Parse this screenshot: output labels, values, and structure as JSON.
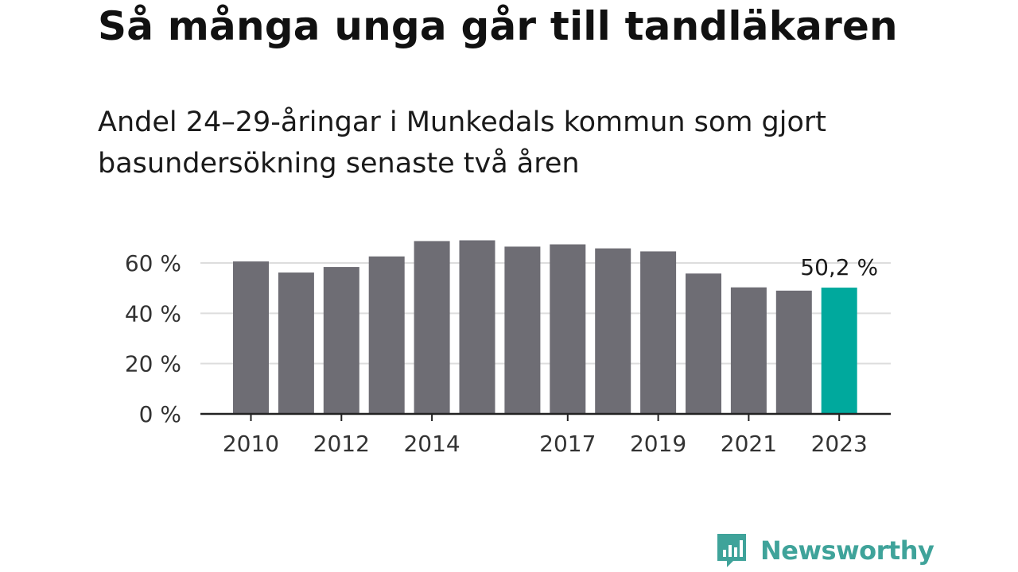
{
  "title": "Så många unga går till tandläkaren",
  "subtitle": "Andel 24–29-åringar i Munkedals kommun som gjort basundersökning senaste två åren",
  "brand": {
    "name": "Newsworthy",
    "color": "#3fa39a"
  },
  "colors": {
    "bar": "#6e6d74",
    "highlight": "#00a99d",
    "grid": "#dddddd",
    "axis": "#222222"
  },
  "chart_data": {
    "type": "bar",
    "categories": [
      "2010",
      "2011",
      "2012",
      "2013",
      "2014",
      "2015",
      "2016",
      "2017",
      "2018",
      "2019",
      "2020",
      "2021",
      "2022",
      "2023"
    ],
    "values": [
      60.6,
      56.2,
      58.4,
      62.6,
      68.7,
      69.0,
      66.5,
      67.4,
      65.8,
      64.6,
      55.8,
      50.3,
      49.0,
      50.2
    ],
    "highlight_index": 13,
    "value_label": "50,2 %",
    "ylim": [
      0,
      70
    ],
    "yticks": [
      0,
      20,
      40,
      60
    ],
    "ytick_labels": [
      "0 %",
      "20 %",
      "40 %",
      "60 %"
    ],
    "xtick_labels": [
      "2010",
      "",
      "2012",
      "",
      "2014",
      "",
      "",
      "2017",
      "",
      "2019",
      "",
      "2021",
      "",
      "2023"
    ],
    "grid": true,
    "legend": "none",
    "xlabel": "",
    "ylabel": ""
  }
}
